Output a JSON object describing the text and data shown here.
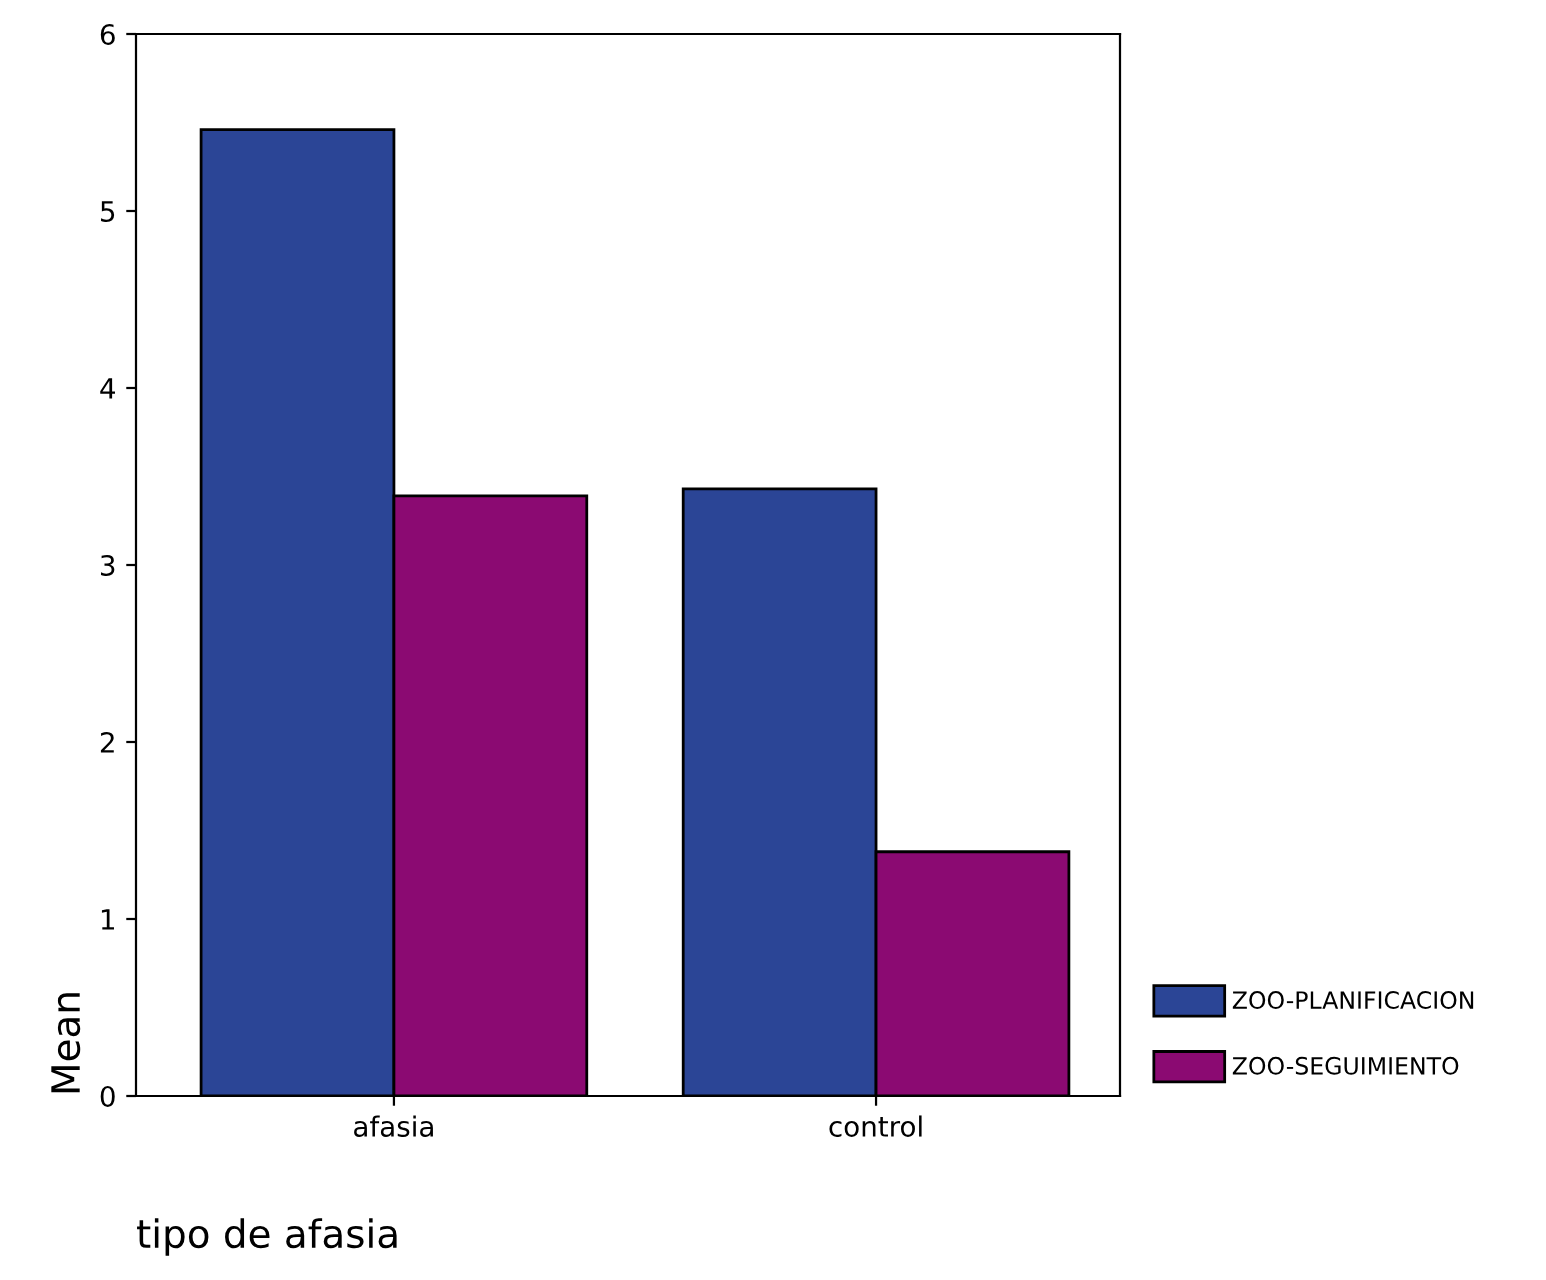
{
  "chart_data": {
    "type": "bar",
    "xlabel": "tipo de afasia",
    "ylabel": "Mean",
    "categories": [
      "afasia",
      "control"
    ],
    "series": [
      {
        "name": "ZOO-PLANIFICACION",
        "color": "#2b4596",
        "values": [
          5.46,
          3.43
        ]
      },
      {
        "name": "ZOO-SEGUIMIENTO",
        "color": "#8b0a72",
        "values": [
          3.39,
          1.38
        ]
      }
    ],
    "ylim": [
      0,
      6
    ],
    "yticks": [
      0,
      1,
      2,
      3,
      4,
      5,
      6
    ],
    "grid": false,
    "legend": "bottom right"
  }
}
